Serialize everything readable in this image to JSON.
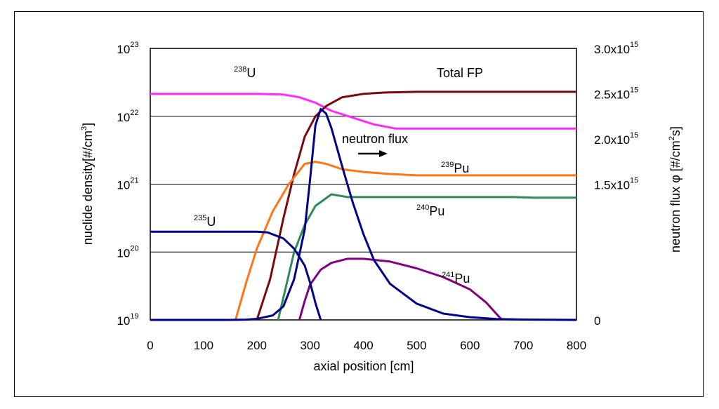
{
  "chart_data": {
    "type": "line",
    "xlabel": "axial position   [cm]",
    "ylabel_left": "nuclide density[#/cm",
    "ylabel_left_sup": "3",
    "ylabel_left_end": "]",
    "ylabel_right": "neutron flux φ   [#/cm",
    "ylabel_right_sup": "2",
    "ylabel_right_end": "s]",
    "xlim": [
      0,
      800
    ],
    "x_ticks": [
      "0",
      "100",
      "200",
      "300",
      "400",
      "500",
      "600",
      "700",
      "800"
    ],
    "y_left_log_range": [
      19,
      23
    ],
    "y_left_ticks": [
      {
        "base": "10",
        "exp": "19"
      },
      {
        "base": "10",
        "exp": "20"
      },
      {
        "base": "10",
        "exp": "21"
      },
      {
        "base": "10",
        "exp": "22"
      },
      {
        "base": "10",
        "exp": "23"
      }
    ],
    "y_right_range": [
      0,
      3000000000000000.0
    ],
    "y_right_ticks": [
      {
        "mant": "0",
        "exp": ""
      },
      {
        "mant": "1.5x10",
        "exp": "15"
      },
      {
        "mant": "2.0x10",
        "exp": "15"
      },
      {
        "mant": "2.5x10",
        "exp": "15"
      },
      {
        "mant": "3.0x10",
        "exp": "15"
      }
    ],
    "gridlines_log": [
      20,
      21,
      22
    ],
    "series": [
      {
        "id": "u238",
        "axis": "left",
        "color": "#ff2bff",
        "x": [
          0,
          200,
          250,
          280,
          310,
          340,
          380,
          420,
          460,
          500,
          600,
          700,
          800
        ],
        "y": [
          22.33,
          22.33,
          22.32,
          22.28,
          22.2,
          22.08,
          21.98,
          21.88,
          21.82,
          21.82,
          21.82,
          21.82,
          21.82
        ]
      },
      {
        "id": "totalfp",
        "axis": "left",
        "color": "#7a0a0a",
        "x": [
          200,
          225,
          250,
          270,
          290,
          310,
          330,
          360,
          400,
          440,
          500,
          600,
          700,
          800
        ],
        "y": [
          19.0,
          19.6,
          20.5,
          21.15,
          21.7,
          22.0,
          22.15,
          22.28,
          22.33,
          22.35,
          22.36,
          22.36,
          22.36,
          22.36
        ]
      },
      {
        "id": "pu239",
        "axis": "left",
        "color": "#ff7518",
        "x": [
          160,
          180,
          200,
          230,
          260,
          290,
          310,
          330,
          360,
          400,
          450,
          500,
          600,
          700,
          800
        ],
        "y": [
          19.0,
          19.55,
          20.05,
          20.6,
          21.0,
          21.3,
          21.33,
          21.3,
          21.22,
          21.18,
          21.15,
          21.13,
          21.13,
          21.13,
          21.13
        ]
      },
      {
        "id": "pu240",
        "axis": "left",
        "color": "#2e8b57",
        "x": [
          240,
          255,
          270,
          290,
          310,
          340,
          370,
          400,
          450,
          500,
          600,
          680,
          720,
          800
        ],
        "y": [
          19.0,
          19.5,
          20.0,
          20.4,
          20.68,
          20.85,
          20.81,
          20.81,
          20.81,
          20.81,
          20.81,
          20.81,
          20.8,
          20.8
        ]
      },
      {
        "id": "pu241",
        "axis": "left",
        "color": "#800080",
        "x": [
          280,
          290,
          300,
          320,
          340,
          370,
          400,
          450,
          500,
          550,
          600,
          630,
          660
        ],
        "y": [
          19.0,
          19.28,
          19.52,
          19.74,
          19.84,
          19.9,
          19.9,
          19.86,
          19.76,
          19.63,
          19.45,
          19.26,
          19.0
        ]
      },
      {
        "id": "u235",
        "axis": "left",
        "color": "#00008b",
        "x": [
          0,
          100,
          200,
          220,
          250,
          270,
          290,
          300,
          310,
          320
        ],
        "y": [
          20.3,
          20.3,
          20.3,
          20.29,
          20.2,
          20.05,
          19.8,
          19.55,
          19.25,
          19.0
        ]
      },
      {
        "id": "flux",
        "axis": "right",
        "color": "#00008b",
        "x": [
          0,
          150,
          180,
          200,
          230,
          250,
          270,
          290,
          300,
          310,
          320,
          330,
          340,
          360,
          380,
          400,
          420,
          450,
          500,
          550,
          600,
          650,
          700,
          750,
          800
        ],
        "y": [
          0,
          0,
          3000000000000.0,
          12000000000000.0,
          50000000000000.0,
          150000000000000.0,
          450000000000000.0,
          1000000000000000.0,
          1550000000000000.0,
          2150000000000000.0,
          2330000000000000.0,
          2280000000000000.0,
          2120000000000000.0,
          1700000000000000.0,
          1300000000000000.0,
          950000000000000.0,
          660000000000000.0,
          400000000000000.0,
          180000000000000.0,
          70000000000000.0,
          30000000000000.0,
          10000000000000.0,
          4000000000000.0,
          2000000000000.0,
          0
        ]
      }
    ],
    "annotations": [
      {
        "id": "u238",
        "sup": "238",
        "text": "U"
      },
      {
        "id": "totalfp",
        "sup": "",
        "text": "Total FP"
      },
      {
        "id": "flux",
        "sup": "",
        "text": "neutron flux"
      },
      {
        "id": "pu239",
        "sup": "239",
        "text": "Pu"
      },
      {
        "id": "pu240",
        "sup": "240",
        "text": "Pu"
      },
      {
        "id": "u235",
        "sup": "235",
        "text": "U"
      },
      {
        "id": "pu241",
        "sup": "241",
        "text": "Pu"
      }
    ]
  }
}
